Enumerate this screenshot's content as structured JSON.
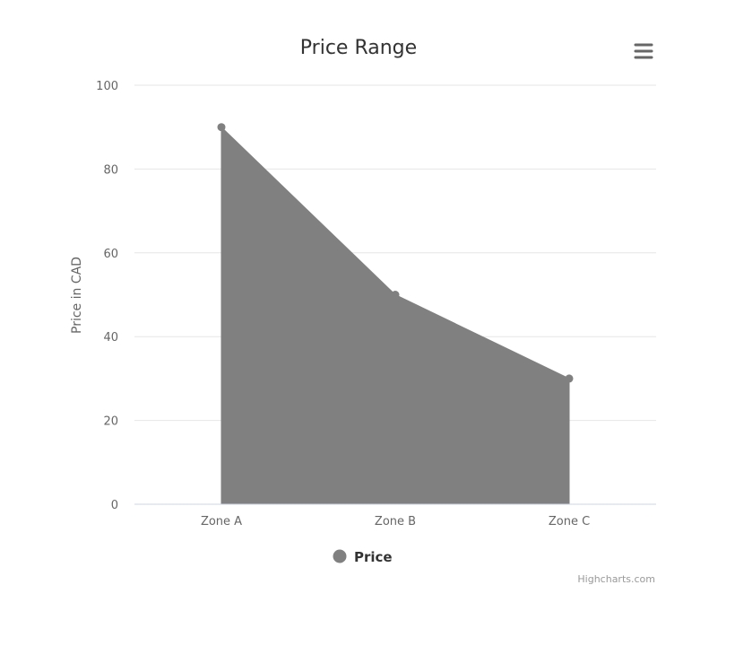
{
  "chart_data": {
    "type": "area",
    "title": "Price Range",
    "xlabel": "",
    "ylabel": "Price in CAD",
    "categories": [
      "Zone A",
      "Zone B",
      "Zone C"
    ],
    "series": [
      {
        "name": "Price",
        "values": [
          90,
          50,
          30
        ],
        "color": "#808080"
      }
    ],
    "ylim": [
      0,
      100
    ],
    "yticks": [
      0,
      20,
      40,
      60,
      80,
      100
    ],
    "grid": true,
    "legend": "bottom-center"
  },
  "credits": "Highcharts.com",
  "menu_icon": "hamburger-menu-icon",
  "colors": {
    "series": "#808080",
    "grid": "#e6e6e6",
    "axis_line": "#ccd6eb",
    "text": "#333333",
    "label": "#666666",
    "credits": "#999999",
    "menu": "#666666"
  }
}
